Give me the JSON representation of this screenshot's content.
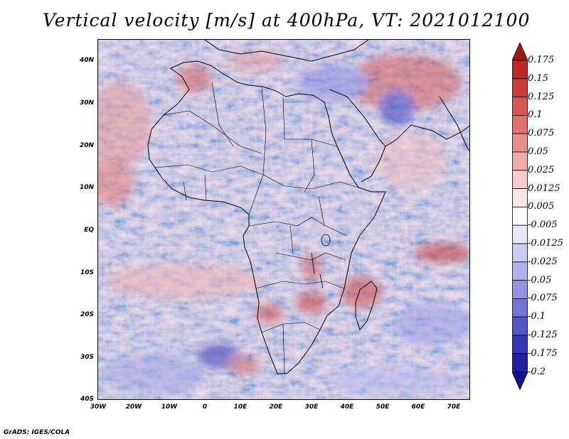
{
  "title": "Vertical velocity [m/s] at 400hPa, VT: 2021012100",
  "credit": "GrADS: IGES/COLA",
  "map": {
    "region": "Africa",
    "lat_labels": [
      "40N",
      "30N",
      "20N",
      "10N",
      "EQ",
      "10S",
      "20S",
      "30S",
      "40S"
    ],
    "lon_labels": [
      "30W",
      "20W",
      "10W",
      "0",
      "10E",
      "20E",
      "30E",
      "40E",
      "50E",
      "60E",
      "70E"
    ],
    "positive_color": "#c02020",
    "negative_color": "#3030c0",
    "background_color": "#cfd0f4"
  },
  "colorbar": {
    "labels": [
      "0.175",
      "0.15",
      "0.125",
      "0.1",
      "0.075",
      "0.05",
      "0.025",
      "0.0125",
      "0.005",
      "-0.005",
      "-0.0125",
      "-0.025",
      "-0.05",
      "-0.075",
      "-0.1",
      "-0.125",
      "-0.175",
      "-0.2"
    ],
    "colors": [
      "#a01616",
      "#bc2626",
      "#cc3c3c",
      "#d95656",
      "#e27070",
      "#e98e8e",
      "#f0acac",
      "#f6cbcb",
      "#fbe6e6",
      "#ffffff",
      "#e8e8f9",
      "#cdcdf3",
      "#b3b3ec",
      "#9494e2",
      "#7474d7",
      "#5555ca",
      "#3535b8",
      "#2020a0",
      "#14148a"
    ]
  }
}
